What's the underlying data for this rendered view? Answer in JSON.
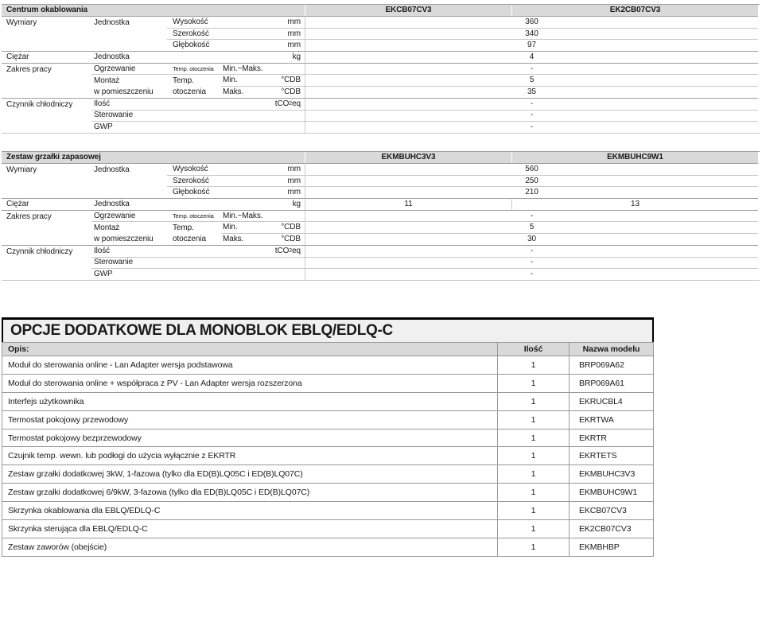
{
  "spec_labels": {
    "wymiary": "Wymiary",
    "jednostka": "Jednostka",
    "wysokosc": "Wysokość",
    "szerokosc": "Szerokość",
    "glebokosc": "Głębokość",
    "ciezar": "Ciężar",
    "zakres_pracy": "Zakres pracy",
    "ogrzewanie": "Ogrzewanie",
    "temp_otoczenia_inline": "Temp. otoczenia",
    "min_maks": "Min.~Maks.",
    "montaz_line1": "Montaż",
    "montaz_line2": "w pomieszczeniu",
    "temp_line1": "Temp.",
    "temp_line2": "otoczenia",
    "min": "Min.",
    "maks": "Maks.",
    "czynnik": "Czynnik chłodniczy",
    "ilosc": "Ilość",
    "sterowanie": "Sterowanie",
    "gwp": "GWP",
    "unit_mm": "mm",
    "unit_kg": "kg",
    "unit_cdb": "°CDB",
    "tco2": {
      "pre": "tCO",
      "sub": "2",
      "post": "eq"
    }
  },
  "t1": {
    "title": "Centrum okablowania",
    "model1": "EKCB07CV3",
    "model2": "EK2CB07CV3",
    "values": {
      "wysokosc": "360",
      "szerokosc": "340",
      "glebokosc": "97",
      "ciezar": "4",
      "ogrzewanie": "-",
      "montaz_min": "5",
      "montaz_maks": "35",
      "ilosc": "-",
      "sterowanie": "-",
      "gwp": "-"
    }
  },
  "t2": {
    "title": "Zestaw grzałki zapasowej",
    "model1": "EKMBUHC3V3",
    "model2": "EKMBUHC9W1",
    "values": {
      "wysokosc": "560",
      "szerokosc": "250",
      "glebokosc": "210",
      "ciezar_m1": "11",
      "ciezar_m2": "13",
      "ogrzewanie": "-",
      "montaz_min": "5",
      "montaz_maks": "30",
      "ilosc": "-",
      "sterowanie": "-",
      "gwp": "-"
    }
  },
  "options": {
    "title": "OPCJE DODATKOWE DLA MONOBLOK EBLQ/EDLQ-C",
    "header": {
      "opis": "Opis:",
      "ilosc": "Ilość",
      "nazwa": "Nazwa modelu"
    },
    "rows": [
      {
        "desc": "Moduł do sterowania online - Lan Adapter wersja podstawowa",
        "qty": "1",
        "model": "BRP069A62"
      },
      {
        "desc": "Moduł do sterowania online + współpraca z PV - Lan Adapter wersja rozszerzona",
        "qty": "1",
        "model": "BRP069A61"
      },
      {
        "desc": "Interfejs użytkownika",
        "qty": "1",
        "model": "EKRUCBL4"
      },
      {
        "desc": "Termostat pokojowy przewodowy",
        "qty": "1",
        "model": "EKRTWA"
      },
      {
        "desc": "Termostat pokojowy bezprzewodowy",
        "qty": "1",
        "model": "EKRTR"
      },
      {
        "desc": "Czujnik temp. wewn. lub podłogi do użycia wyłącznie z EKRTR",
        "qty": "1",
        "model": "EKRTETS"
      },
      {
        "desc": "Zestaw grzałki dodatkowej 3kW, 1-fazowa (tylko dla ED(B)LQ05C i ED(B)LQ07C)",
        "qty": "1",
        "model": "EKMBUHC3V3"
      },
      {
        "desc": "Zestaw grzałki dodatkowej 6/9kW, 3-fazowa (tylko dla ED(B)LQ05C i ED(B)LQ07C)",
        "qty": "1",
        "model": "EKMBUHC9W1"
      },
      {
        "desc": "Skrzynka okablowania dla EBLQ/EDLQ-C",
        "qty": "1",
        "model": "EKCB07CV3"
      },
      {
        "desc": "Skrzynka sterująca dla EBLQ/EDLQ-C",
        "qty": "1",
        "model": "EK2CB07CV3"
      },
      {
        "desc": "Zestaw zaworów (obejście)",
        "qty": "1",
        "model": "EKMBHBP"
      }
    ]
  }
}
